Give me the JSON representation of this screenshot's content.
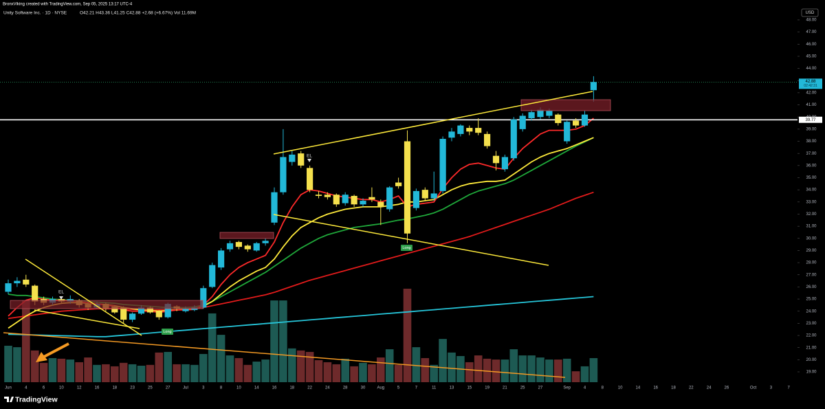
{
  "chart_data": {
    "type": "candlestick",
    "attribution": "BronxViking created with TradingView.com, Sep 05, 2025 13:17 UTC-4",
    "symbol": "Unity Software Inc. · 1D · NYSE",
    "ohlc_text": "O42.21 H43.36 L41.25 C42.88 +2.68 (+6.67%) Vol 11.69M",
    "currency": "USD",
    "watermark": "TradingView",
    "countdown": "02:42:31",
    "price_line": 39.77,
    "annotations": {
      "el": [
        "EL",
        "EL"
      ],
      "long": [
        "Long",
        "Long"
      ]
    },
    "categories": [
      "Jun",
      null,
      "4",
      null,
      "6",
      null,
      "10",
      null,
      "12",
      null,
      "16",
      null,
      "18",
      null,
      "23",
      null,
      "25",
      null,
      "27",
      null,
      "Jul",
      null,
      "3",
      null,
      "8",
      null,
      "10",
      null,
      "14",
      null,
      "16",
      null,
      "18",
      null,
      "22",
      null,
      "24",
      null,
      "28",
      null,
      "30",
      null,
      "Aug",
      null,
      "5",
      null,
      "7",
      null,
      "11",
      null,
      "13",
      null,
      "15",
      null,
      "19",
      null,
      "21",
      null,
      "25",
      null,
      "27",
      null,
      null,
      "Sep",
      null,
      "4",
      null,
      "8",
      null,
      "10",
      null,
      "14",
      null,
      "16",
      null,
      "18",
      null,
      "22",
      null,
      "24",
      null,
      "26",
      null,
      null,
      "Oct",
      null,
      "3",
      null,
      "7"
    ],
    "open": [
      25.6,
      26.3,
      26.6,
      26.1,
      25.0,
      24.7,
      25.0,
      24.8,
      24.9,
      24.6,
      24.3,
      24.6,
      24.4,
      24.3,
      23.3,
      23.8,
      24.3,
      24.0,
      23.5,
      24.4,
      24.0,
      24.1,
      24.3,
      26.0,
      27.6,
      29.1,
      29.7,
      29.4,
      29.0,
      29.6,
      31.3,
      33.8,
      36.3,
      37.0,
      35.8,
      33.6,
      33.6,
      33.6,
      32.9,
      33.5,
      32.8,
      33.4,
      33.0,
      32.4,
      34.6,
      38.0,
      32.5,
      34.0,
      33.3,
      33.9,
      38.3,
      38.6,
      39.1,
      39.1,
      38.6,
      36.8,
      35.7,
      36.6,
      39.0,
      39.9,
      40.0,
      40.1,
      40.2,
      38.0,
      39.7,
      39.3,
      42.21,
      null,
      null,
      null,
      null,
      null,
      null,
      null,
      null,
      null,
      null,
      null,
      null,
      null,
      null,
      null,
      null,
      null,
      null,
      null,
      null,
      null,
      null
    ],
    "high": [
      26.6,
      26.8,
      27.0,
      26.2,
      25.2,
      25.2,
      25.2,
      25.3,
      25.0,
      24.8,
      24.8,
      24.7,
      24.5,
      24.4,
      23.9,
      24.5,
      24.4,
      24.1,
      24.7,
      24.5,
      24.4,
      24.5,
      26.1,
      28.0,
      29.2,
      29.8,
      29.8,
      29.5,
      29.7,
      30.0,
      34.2,
      39.0,
      37.2,
      37.2,
      36.0,
      33.9,
      33.8,
      33.7,
      33.8,
      33.6,
      33.3,
      34.2,
      33.2,
      34.3,
      35.0,
      38.9,
      34.1,
      34.2,
      35.5,
      38.4,
      39.1,
      39.4,
      39.3,
      39.9,
      38.8,
      37.2,
      36.9,
      40.0,
      40.3,
      40.6,
      40.8,
      40.7,
      40.3,
      39.7,
      39.9,
      40.5,
      43.36,
      null,
      null,
      null,
      null,
      null,
      null,
      null,
      null,
      null,
      null,
      null,
      null,
      null,
      null,
      null,
      null,
      null,
      null,
      null,
      null,
      null,
      null
    ],
    "low": [
      25.4,
      26.0,
      26.0,
      24.5,
      24.5,
      24.5,
      24.6,
      24.6,
      24.3,
      24.1,
      24.2,
      24.0,
      23.8,
      23.0,
      23.1,
      23.7,
      23.8,
      23.3,
      23.4,
      24.0,
      23.9,
      24.0,
      24.2,
      25.9,
      27.4,
      28.9,
      29.1,
      28.9,
      28.9,
      29.4,
      31.1,
      33.6,
      36.0,
      35.8,
      33.8,
      33.3,
      33.2,
      32.6,
      32.7,
      32.6,
      32.6,
      33.0,
      31.1,
      32.2,
      34.1,
      29.6,
      32.3,
      33.1,
      33.1,
      33.7,
      38.0,
      38.4,
      38.5,
      38.5,
      37.4,
      35.6,
      35.5,
      36.4,
      38.8,
      39.7,
      39.8,
      39.9,
      39.3,
      37.8,
      39.1,
      39.2,
      41.25,
      null,
      null,
      null,
      null,
      null,
      null,
      null,
      null,
      null,
      null,
      null,
      null,
      null,
      null,
      null,
      null,
      null,
      null,
      null,
      null,
      null,
      null
    ],
    "close": [
      26.3,
      26.5,
      26.2,
      24.8,
      24.7,
      25.0,
      24.8,
      25.0,
      24.5,
      24.3,
      24.6,
      24.2,
      23.9,
      23.3,
      23.8,
      24.3,
      23.9,
      23.5,
      24.6,
      24.2,
      24.2,
      24.3,
      25.9,
      27.8,
      29.0,
      29.6,
      29.3,
      29.1,
      29.6,
      29.8,
      33.8,
      36.7,
      36.9,
      36.0,
      34.0,
      33.5,
      33.4,
      32.8,
      33.6,
      32.8,
      33.1,
      33.2,
      32.6,
      34.2,
      34.3,
      30.4,
      33.9,
      33.3,
      33.7,
      38.2,
      38.8,
      39.3,
      38.8,
      38.7,
      37.6,
      36.2,
      36.7,
      39.8,
      40.1,
      40.4,
      40.6,
      40.5,
      39.5,
      39.6,
      39.3,
      40.2,
      42.88,
      null,
      null,
      null,
      null,
      null,
      null,
      null,
      null,
      null,
      null,
      null,
      null,
      null,
      null,
      null,
      null,
      null,
      null,
      null,
      null,
      null,
      null
    ],
    "up_color": "#22b8d8",
    "down_color": "#f4e04d",
    "volume": {
      "up_color": "#1d5a53",
      "down_color": "#6e2a2b",
      "values": [
        17.7,
        17.0,
        39.7,
        15.4,
        9.4,
        11.7,
        11.4,
        11.0,
        9.7,
        12.0,
        8.4,
        8.7,
        7.7,
        9.4,
        8.7,
        8.0,
        8.4,
        14.4,
        14.7,
        8.7,
        8.7,
        8.4,
        13.7,
        33.4,
        23.0,
        13.0,
        11.7,
        8.4,
        10.0,
        11.0,
        39.7,
        39.7,
        16.4,
        15.4,
        14.7,
        10.7,
        9.7,
        8.7,
        11.4,
        7.7,
        9.4,
        8.7,
        12.0,
        16.0,
        8.4,
        45.4,
        17.0,
        11.7,
        8.4,
        21.0,
        14.4,
        12.7,
        9.7,
        13.0,
        11.4,
        11.0,
        11.0,
        16.0,
        13.0,
        13.0,
        12.0,
        11.0,
        11.0,
        11.4,
        5.3,
        7.7,
        11.69,
        null,
        null,
        null,
        null,
        null,
        null,
        null,
        null,
        null,
        null,
        null,
        null,
        null,
        null,
        null,
        null,
        null,
        null,
        null,
        null,
        null,
        null
      ]
    },
    "overlays": [
      {
        "color": "#26c6da",
        "values": [
          22.1,
          22.08,
          22.06,
          22.04,
          22.02,
          22.0,
          21.98,
          21.96,
          21.94,
          21.92,
          21.9,
          21.9,
          21.96,
          22.02,
          22.08,
          22.14,
          22.2,
          22.26,
          22.32,
          22.38,
          22.44,
          22.5,
          22.56,
          22.62,
          22.68,
          22.74,
          22.8,
          22.86,
          22.92,
          22.98,
          23.04,
          23.1,
          23.16,
          23.22,
          23.28,
          23.34,
          23.4,
          23.46,
          23.52,
          23.58,
          23.64,
          23.7,
          23.76,
          23.82,
          23.88,
          23.94,
          24.0,
          24.06,
          24.12,
          24.18,
          24.24,
          24.3,
          24.36,
          24.42,
          24.48,
          24.54,
          24.6,
          24.66,
          24.72,
          24.78,
          24.84,
          24.9,
          24.96,
          25.02,
          25.08,
          25.14,
          25.2,
          null,
          null,
          null,
          null,
          null,
          null,
          null,
          null,
          null,
          null,
          null,
          null,
          null,
          null,
          null,
          null,
          null,
          null,
          null,
          null,
          null,
          null
        ]
      },
      {
        "color": "#e31b1b",
        "values": [
          23.4,
          23.5,
          23.6,
          23.7,
          23.8,
          23.9,
          24.0,
          24.05,
          24.1,
          24.15,
          24.2,
          24.2,
          24.2,
          24.2,
          24.15,
          24.1,
          24.1,
          24.1,
          24.1,
          24.1,
          24.15,
          24.2,
          24.3,
          24.45,
          24.6,
          24.75,
          24.9,
          25.05,
          25.2,
          25.35,
          25.55,
          25.8,
          26.05,
          26.3,
          26.55,
          26.75,
          26.95,
          27.15,
          27.35,
          27.55,
          27.75,
          27.95,
          28.15,
          28.35,
          28.55,
          28.75,
          28.95,
          29.15,
          29.35,
          29.55,
          29.75,
          29.95,
          30.15,
          30.4,
          30.65,
          30.9,
          31.15,
          31.4,
          31.65,
          31.9,
          32.15,
          32.4,
          32.7,
          33.0,
          33.3,
          33.55,
          33.8,
          null,
          null,
          null,
          null,
          null,
          null,
          null,
          null,
          null,
          null,
          null,
          null,
          null,
          null,
          null,
          null,
          null,
          null,
          null,
          null,
          null,
          null
        ]
      },
      {
        "color": "#1fa83a",
        "values": [
          25.4,
          25.3,
          25.3,
          25.2,
          25.1,
          25.0,
          24.95,
          24.9,
          24.85,
          24.8,
          24.75,
          24.7,
          24.65,
          24.55,
          24.5,
          24.45,
          24.4,
          24.35,
          24.3,
          24.3,
          24.3,
          24.35,
          24.5,
          24.8,
          25.2,
          25.6,
          26.0,
          26.4,
          26.8,
          27.2,
          27.7,
          28.2,
          28.7,
          29.2,
          29.6,
          30.0,
          30.3,
          30.5,
          30.7,
          30.9,
          31.0,
          31.1,
          31.2,
          31.35,
          31.5,
          31.6,
          31.75,
          31.9,
          32.1,
          32.4,
          32.8,
          33.2,
          33.6,
          33.9,
          34.1,
          34.3,
          34.5,
          34.8,
          35.2,
          35.6,
          36.0,
          36.4,
          36.8,
          37.2,
          37.6,
          37.95,
          38.3,
          null,
          null,
          null,
          null,
          null,
          null,
          null,
          null,
          null,
          null,
          null,
          null,
          null,
          null,
          null,
          null,
          null,
          null,
          null,
          null,
          null,
          null
        ]
      },
      {
        "color": "#ffeb3b",
        "values": [
          22.6,
          23.1,
          23.6,
          24.0,
          24.3,
          24.5,
          24.65,
          24.7,
          24.7,
          24.65,
          24.6,
          24.55,
          24.45,
          24.3,
          24.2,
          24.1,
          24.05,
          24.0,
          24.05,
          24.1,
          24.15,
          24.2,
          24.4,
          24.8,
          25.4,
          26.0,
          26.5,
          26.9,
          27.3,
          27.6,
          28.3,
          29.3,
          30.2,
          30.9,
          31.3,
          31.7,
          32.0,
          32.2,
          32.4,
          32.5,
          32.6,
          32.6,
          32.6,
          32.7,
          32.8,
          33.0,
          33.0,
          33.1,
          33.2,
          33.6,
          34.0,
          34.3,
          34.5,
          34.6,
          34.7,
          34.7,
          34.8,
          35.3,
          35.8,
          36.3,
          36.7,
          37.0,
          37.2,
          37.4,
          37.7,
          38.0,
          38.3,
          null,
          null,
          null,
          null,
          null,
          null,
          null,
          null,
          null,
          null,
          null,
          null,
          null,
          null,
          null,
          null,
          null,
          null,
          null,
          null,
          null,
          null
        ]
      },
      {
        "color": "#ff2a2a",
        "values": [
          23.6,
          24.3,
          24.9,
          25.1,
          25.0,
          24.9,
          24.9,
          24.85,
          24.8,
          24.7,
          24.6,
          24.5,
          24.4,
          24.1,
          24.0,
          24.0,
          24.0,
          23.9,
          24.0,
          24.1,
          24.1,
          24.15,
          24.5,
          25.2,
          26.2,
          27.0,
          27.6,
          28.0,
          28.3,
          28.6,
          29.7,
          31.3,
          32.6,
          33.6,
          34.0,
          33.9,
          33.7,
          33.5,
          33.4,
          33.3,
          33.2,
          33.2,
          33.0,
          33.2,
          33.5,
          32.6,
          32.8,
          32.9,
          33.0,
          34.1,
          35.0,
          35.7,
          36.1,
          36.2,
          36.0,
          35.8,
          35.7,
          36.6,
          37.4,
          38.0,
          38.6,
          38.9,
          38.9,
          38.9,
          39.0,
          39.3,
          39.9,
          null,
          null,
          null,
          null,
          null,
          null,
          null,
          null,
          null,
          null,
          null,
          null,
          null,
          null,
          null,
          null,
          null,
          null,
          null,
          null,
          null,
          null
        ]
      }
    ],
    "ylim": [
      18.15,
      48.96
    ],
    "yticks": [
      {
        "value": 19,
        "label": "19.00"
      },
      {
        "value": 20,
        "label": "20.00"
      },
      {
        "value": 21,
        "label": "21.00"
      },
      {
        "value": 22,
        "label": "22.00"
      },
      {
        "value": 23,
        "label": "23.00"
      },
      {
        "value": 24,
        "label": "24.00"
      },
      {
        "value": 25,
        "label": "25.00"
      },
      {
        "value": 26,
        "label": "26.00"
      },
      {
        "value": 27,
        "label": "27.00"
      },
      {
        "value": 28,
        "label": "28.00"
      },
      {
        "value": 29,
        "label": "29.00"
      },
      {
        "value": 30,
        "label": "30.00"
      },
      {
        "value": 31,
        "label": "31.00"
      },
      {
        "value": 32,
        "label": "32.00"
      },
      {
        "value": 33,
        "label": "33.00"
      },
      {
        "value": 34,
        "label": "34.00"
      },
      {
        "value": 35,
        "label": "35.00"
      },
      {
        "value": 36,
        "label": "36.00"
      },
      {
        "value": 37,
        "label": "37.00"
      },
      {
        "value": 38,
        "label": "38.00"
      },
      {
        "value": 39,
        "label": "39.00"
      },
      {
        "value": 40,
        "label": "40.00"
      },
      {
        "value": 41,
        "label": "41.00"
      },
      {
        "value": 42,
        "label": "42.00"
      },
      {
        "value": 43,
        "label": "43.00"
      },
      {
        "value": 44,
        "label": "44.00"
      },
      {
        "value": 45,
        "label": "45.00"
      },
      {
        "value": 46,
        "label": "46.00"
      },
      {
        "value": 47,
        "label": "47.00"
      },
      {
        "value": 48,
        "label": "48.00"
      }
    ],
    "grid": false
  }
}
